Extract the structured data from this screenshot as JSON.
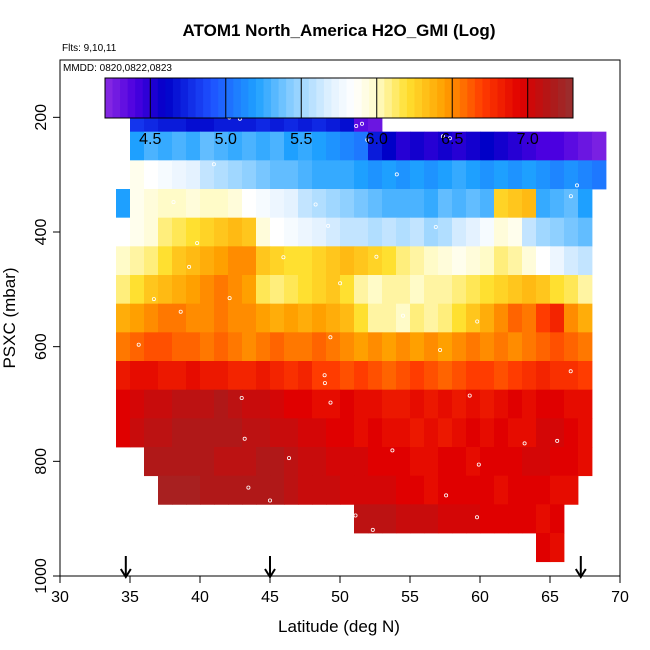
{
  "chart_data": {
    "type": "heatmap",
    "title": "ATOM1 North_America H2O_GMI (Log)",
    "flights_label": "Flts: 9,10,11",
    "dates_label": "MMDD: 0820,0822,0823",
    "xlabel": "Latitude (deg N)",
    "ylabel": "PSXC (mbar)",
    "xlim": [
      30,
      70
    ],
    "ylim": [
      1000,
      100
    ],
    "xticks": [
      "30",
      "35",
      "40",
      "45",
      "50",
      "55",
      "60",
      "65",
      "70"
    ],
    "yticks": [
      "200",
      "400",
      "600",
      "800",
      "1000"
    ],
    "colorbar": {
      "range": [
        4.2,
        7.3
      ],
      "ticks": [
        "4.5",
        "5.0",
        "5.5",
        "6.0",
        "6.5",
        "7.0"
      ],
      "stops": [
        {
          "v": 4.2,
          "c": "#8a2be2"
        },
        {
          "v": 4.4,
          "c": "#4b00e0"
        },
        {
          "v": 4.6,
          "c": "#0000c8"
        },
        {
          "v": 4.9,
          "c": "#1e50ff"
        },
        {
          "v": 5.2,
          "c": "#1ea0ff"
        },
        {
          "v": 5.45,
          "c": "#8fd0ff"
        },
        {
          "v": 5.7,
          "c": "#e4f2ff"
        },
        {
          "v": 5.85,
          "c": "#ffffff"
        },
        {
          "v": 6.0,
          "c": "#fffbc8"
        },
        {
          "v": 6.2,
          "c": "#ffe030"
        },
        {
          "v": 6.45,
          "c": "#ffa000"
        },
        {
          "v": 6.7,
          "c": "#ff3c00"
        },
        {
          "v": 6.95,
          "c": "#e00000"
        },
        {
          "v": 7.15,
          "c": "#b01818"
        },
        {
          "v": 7.3,
          "c": "#983030"
        }
      ]
    },
    "arrows_latitude": [
      34.7,
      45,
      67.2
    ],
    "rows": [
      {
        "p": 200,
        "x0": 35.0,
        "x1": 51.0,
        "vals": [
          4.8,
          4.75,
          4.7,
          4.7,
          4.65,
          4.65,
          4.7,
          4.7,
          4.7,
          4.75,
          4.7,
          4.75,
          4.7,
          4.75,
          4.7,
          4.65
        ]
      },
      {
        "p": 200,
        "x0": 51.0,
        "x1": 53.0,
        "vals": [
          4.35,
          4.3
        ]
      },
      {
        "p": 250,
        "x0": 35.0,
        "x1": 69.0,
        "vals": [
          5.2,
          5.3,
          5.25,
          5.3,
          5.25,
          5.35,
          5.3,
          5.25,
          5.3,
          5.25,
          5.3,
          5.2,
          5.25,
          5.2,
          5.15,
          5.1,
          5.05,
          4.7,
          4.6,
          4.5,
          4.55,
          4.5,
          4.55,
          4.5,
          4.55,
          4.6,
          4.55,
          4.5,
          4.45,
          4.4,
          4.4,
          4.35,
          4.3,
          4.25
        ]
      },
      {
        "p": 300,
        "x0": 35.0,
        "x1": 69.0,
        "vals": [
          5.9,
          5.85,
          5.8,
          5.75,
          5.7,
          5.6,
          5.55,
          5.5,
          5.45,
          5.4,
          5.35,
          5.35,
          5.3,
          5.25,
          5.25,
          5.25,
          5.2,
          5.15,
          5.2,
          5.15,
          5.2,
          5.15,
          5.2,
          5.25,
          5.2,
          5.15,
          5.2,
          5.15,
          5.2,
          5.15,
          5.1,
          5.15,
          5.1,
          5.05
        ]
      },
      {
        "p": 350,
        "x0": 34.0,
        "x1": 68.0,
        "vals": [
          5.2,
          5.9,
          5.95,
          6.0,
          6.0,
          5.95,
          6.0,
          6.0,
          5.95,
          5.85,
          5.8,
          5.75,
          5.7,
          5.6,
          5.55,
          5.5,
          5.45,
          5.4,
          5.35,
          5.3,
          5.3,
          5.3,
          5.25,
          5.35,
          5.3,
          5.35,
          5.3,
          6.25,
          6.3,
          6.35,
          5.25,
          5.3,
          5.35,
          5.2
        ]
      },
      {
        "p": 400,
        "x0": 34.0,
        "x1": 68.0,
        "vals": [
          5.85,
          5.9,
          5.95,
          6.1,
          6.15,
          6.2,
          6.25,
          6.3,
          6.35,
          6.3,
          5.95,
          5.85,
          5.8,
          5.75,
          5.7,
          5.65,
          5.6,
          5.6,
          5.55,
          5.6,
          5.55,
          5.6,
          5.5,
          5.55,
          5.65,
          5.7,
          5.8,
          5.95,
          5.9,
          5.6,
          5.5,
          5.45,
          5.4,
          5.35
        ]
      },
      {
        "p": 450,
        "x0": 34.0,
        "x1": 68.0,
        "vals": [
          6.0,
          6.05,
          6.1,
          6.2,
          6.3,
          6.35,
          6.4,
          6.45,
          6.5,
          6.5,
          6.3,
          6.25,
          6.2,
          6.2,
          6.25,
          6.3,
          6.35,
          6.3,
          6.25,
          6.2,
          6.1,
          6.05,
          6.0,
          5.95,
          5.9,
          5.95,
          6.0,
          6.1,
          6.05,
          5.95,
          5.85,
          5.75,
          5.65,
          5.6
        ]
      },
      {
        "p": 500,
        "x0": 34.0,
        "x1": 68.0,
        "vals": [
          6.1,
          6.2,
          6.3,
          6.35,
          6.4,
          6.45,
          6.5,
          6.55,
          6.5,
          6.45,
          6.15,
          6.1,
          6.15,
          6.2,
          6.25,
          6.3,
          6.2,
          6.05,
          6.0,
          6.05,
          6.05,
          6.0,
          6.05,
          6.05,
          6.1,
          6.15,
          6.2,
          6.25,
          6.3,
          6.35,
          6.3,
          6.2,
          6.15,
          6.05
        ]
      },
      {
        "p": 550,
        "x0": 34.0,
        "x1": 68.0,
        "vals": [
          6.4,
          6.45,
          6.5,
          6.55,
          6.55,
          6.5,
          6.5,
          6.55,
          6.5,
          6.5,
          6.45,
          6.4,
          6.45,
          6.4,
          6.45,
          6.4,
          6.35,
          6.2,
          6.05,
          6.05,
          6.0,
          6.1,
          6.05,
          6.1,
          6.2,
          6.3,
          6.4,
          6.5,
          6.6,
          6.55,
          6.7,
          6.8,
          6.5,
          6.4
        ]
      },
      {
        "p": 600,
        "x0": 34.0,
        "x1": 68.0,
        "vals": [
          6.55,
          6.6,
          6.65,
          6.65,
          6.6,
          6.6,
          6.55,
          6.6,
          6.55,
          6.5,
          6.55,
          6.6,
          6.55,
          6.55,
          6.6,
          6.55,
          6.5,
          6.45,
          6.5,
          6.45,
          6.5,
          6.45,
          6.5,
          6.45,
          6.5,
          6.55,
          6.5,
          6.55,
          6.5,
          6.55,
          6.6,
          6.65,
          6.6,
          6.55
        ]
      },
      {
        "p": 650,
        "x0": 34.0,
        "x1": 68.0,
        "vals": [
          6.85,
          6.9,
          6.9,
          6.85,
          6.85,
          6.9,
          6.85,
          6.85,
          6.8,
          6.8,
          6.85,
          6.8,
          6.75,
          6.8,
          6.7,
          6.7,
          6.65,
          6.7,
          6.65,
          6.6,
          6.65,
          6.7,
          6.65,
          6.6,
          6.65,
          6.7,
          6.7,
          6.65,
          6.7,
          6.75,
          6.8,
          6.75,
          6.75,
          6.7
        ]
      },
      {
        "p": 700,
        "x0": 34.0,
        "x1": 68.0,
        "vals": [
          6.95,
          7.0,
          7.05,
          7.05,
          7.1,
          7.1,
          7.1,
          7.15,
          7.1,
          7.05,
          7.05,
          7.0,
          6.95,
          6.95,
          6.9,
          6.9,
          6.95,
          6.9,
          6.9,
          6.85,
          6.85,
          6.9,
          6.85,
          6.9,
          6.85,
          6.9,
          6.85,
          6.9,
          6.95,
          6.9,
          6.95,
          6.95,
          6.9,
          6.9
        ]
      },
      {
        "p": 750,
        "x0": 34.0,
        "x1": 68.0,
        "vals": [
          6.95,
          7.05,
          7.1,
          7.1,
          7.15,
          7.15,
          7.15,
          7.15,
          7.15,
          7.1,
          7.1,
          7.05,
          7.05,
          7.0,
          7.0,
          6.95,
          6.95,
          6.9,
          6.95,
          6.9,
          6.9,
          6.85,
          6.9,
          6.85,
          6.9,
          6.95,
          6.9,
          6.95,
          6.9,
          6.9,
          7.0,
          7.0,
          6.95,
          6.9
        ]
      },
      {
        "p": 800,
        "x0": 36.0,
        "x1": 68.0,
        "vals": [
          7.15,
          7.15,
          7.15,
          7.15,
          7.15,
          7.1,
          7.1,
          7.1,
          7.15,
          7.15,
          7.1,
          7.05,
          7.05,
          7.0,
          7.0,
          7.0,
          6.95,
          6.95,
          6.95,
          6.9,
          6.9,
          6.95,
          6.95,
          6.9,
          6.95,
          6.95,
          6.95,
          7.0,
          7.0,
          6.95,
          6.95,
          6.9
        ]
      },
      {
        "p": 850,
        "x0": 37.0,
        "x1": 67.0,
        "vals": [
          7.2,
          7.2,
          7.2,
          7.15,
          7.15,
          7.15,
          7.15,
          7.15,
          7.15,
          7.1,
          7.05,
          7.05,
          7.05,
          7.0,
          7.0,
          7.0,
          7.0,
          6.95,
          6.95,
          6.9,
          6.95,
          6.95,
          6.95,
          6.95,
          6.9,
          6.95,
          6.95,
          6.95,
          6.9,
          6.9
        ]
      },
      {
        "p": 900,
        "x0": 51.0,
        "x1": 66.0,
        "vals": [
          7.1,
          7.1,
          7.1,
          7.05,
          7.05,
          7.05,
          7.0,
          7.0,
          7.0,
          6.95,
          6.95,
          6.95,
          6.95,
          6.9,
          6.95
        ]
      },
      {
        "p": 950,
        "x0": 64.0,
        "x1": 66.0,
        "vals": [
          6.95,
          6.9
        ]
      }
    ]
  }
}
